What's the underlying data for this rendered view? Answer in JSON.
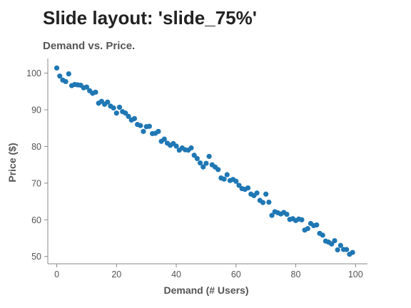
{
  "slide": {
    "title": "Slide layout: 'slide_75%'"
  },
  "chart_data": {
    "type": "scatter",
    "title": "Demand vs. Price.",
    "xlabel": "Demand (# Users)",
    "ylabel": "Price ($)",
    "xlim": [
      -3,
      104
    ],
    "ylim": [
      48,
      104
    ],
    "xticks": [
      0,
      20,
      40,
      60,
      80,
      100
    ],
    "yticks": [
      50,
      60,
      70,
      80,
      90,
      100
    ],
    "grid": false,
    "point_color": "#1f77b4",
    "x": [
      0,
      1,
      2,
      3,
      4,
      5,
      6,
      7,
      8,
      9,
      10,
      11,
      12,
      13,
      14,
      15,
      16,
      17,
      18,
      19,
      20,
      21,
      22,
      23,
      24,
      25,
      26,
      27,
      28,
      29,
      30,
      31,
      32,
      33,
      34,
      35,
      36,
      37,
      38,
      39,
      40,
      41,
      42,
      43,
      44,
      45,
      46,
      47,
      48,
      49,
      50,
      51,
      52,
      53,
      54,
      55,
      56,
      57,
      58,
      59,
      60,
      61,
      62,
      63,
      64,
      65,
      66,
      67,
      68,
      69,
      70,
      71,
      72,
      73,
      74,
      75,
      76,
      77,
      78,
      79,
      80,
      81,
      82,
      83,
      84,
      85,
      86,
      87,
      88,
      89,
      90,
      91,
      92,
      93,
      94,
      95,
      96,
      97,
      98,
      99
    ],
    "y": [
      101.4,
      99.2,
      98.1,
      97.7,
      99.8,
      96.6,
      96.9,
      96.8,
      96.7,
      96.0,
      96.2,
      95.2,
      94.5,
      94.8,
      91.8,
      92.3,
      91.5,
      92.1,
      91.0,
      90.5,
      89.1,
      90.7,
      89.5,
      89.1,
      88.2,
      87.2,
      87.6,
      86.0,
      85.7,
      84.1,
      85.4,
      85.5,
      83.5,
      83.6,
      84.1,
      81.4,
      82.0,
      80.9,
      80.3,
      80.8,
      80.1,
      79.0,
      79.6,
      79.1,
      79.0,
      79.6,
      77.6,
      76.7,
      75.5,
      74.4,
      75.4,
      77.3,
      75.0,
      74.4,
      73.7,
      71.4,
      71.1,
      72.3,
      70.7,
      71.0,
      70.5,
      69.4,
      68.5,
      68.3,
      68.7,
      67.0,
      66.6,
      67.3,
      65.3,
      64.7,
      67.0,
      64.8,
      61.2,
      62.2,
      61.9,
      61.6,
      62.0,
      61.5,
      60.1,
      60.3,
      59.8,
      60.2,
      60.0,
      57.2,
      57.6,
      59.0,
      58.4,
      58.6,
      56.3,
      55.8,
      54.2,
      53.9,
      53.4,
      54.3,
      51.8,
      53.0,
      51.9,
      51.9,
      50.6,
      51.1
    ]
  }
}
